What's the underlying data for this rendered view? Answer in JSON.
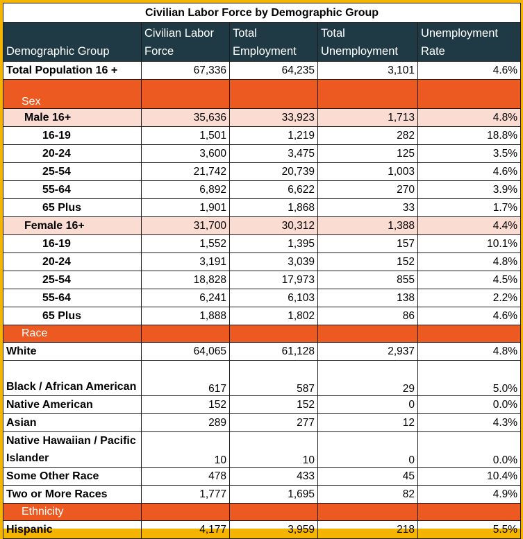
{
  "title": "Civilian Labor Force by Demographic Group",
  "headers": [
    "Demographic Group",
    "Civilian Labor Force",
    "Total Employment",
    "Total Unemployment",
    "Unemployment Rate"
  ],
  "colors": {
    "frame": "#f5b400",
    "header_bg": "#1f3a44",
    "section_bg": "#ec5a21",
    "subgroup_bg": "#fbdcd2"
  },
  "rows": [
    {
      "type": "data",
      "level": 0,
      "label": "Total Population 16 +",
      "clf": "67,336",
      "emp": "64,235",
      "unemp": "3,101",
      "rate": "4.6%"
    },
    {
      "type": "section",
      "label": "Sex"
    },
    {
      "type": "data",
      "level": 1,
      "sub": true,
      "label": "Male 16+",
      "clf": "35,636",
      "emp": "33,923",
      "unemp": "1,713",
      "rate": "4.8%"
    },
    {
      "type": "data",
      "level": 2,
      "label": "16-19",
      "clf": "1,501",
      "emp": "1,219",
      "unemp": "282",
      "rate": "18.8%"
    },
    {
      "type": "data",
      "level": 2,
      "label": "20-24",
      "clf": "3,600",
      "emp": "3,475",
      "unemp": "125",
      "rate": "3.5%"
    },
    {
      "type": "data",
      "level": 2,
      "label": "25-54",
      "clf": "21,742",
      "emp": "20,739",
      "unemp": "1,003",
      "rate": "4.6%"
    },
    {
      "type": "data",
      "level": 2,
      "label": "55-64",
      "clf": "6,892",
      "emp": "6,622",
      "unemp": "270",
      "rate": "3.9%"
    },
    {
      "type": "data",
      "level": 2,
      "label": "65 Plus",
      "clf": "1,901",
      "emp": "1,868",
      "unemp": "33",
      "rate": "1.7%"
    },
    {
      "type": "data",
      "level": 1,
      "sub": true,
      "label": "Female 16+",
      "clf": "31,700",
      "emp": "30,312",
      "unemp": "1,388",
      "rate": "4.4%"
    },
    {
      "type": "data",
      "level": 2,
      "label": "16-19",
      "clf": "1,552",
      "emp": "1,395",
      "unemp": "157",
      "rate": "10.1%"
    },
    {
      "type": "data",
      "level": 2,
      "label": "20-24",
      "clf": "3,191",
      "emp": "3,039",
      "unemp": "152",
      "rate": "4.8%"
    },
    {
      "type": "data",
      "level": 2,
      "label": "25-54",
      "clf": "18,828",
      "emp": "17,973",
      "unemp": "855",
      "rate": "4.5%"
    },
    {
      "type": "data",
      "level": 2,
      "label": "55-64",
      "clf": "6,241",
      "emp": "6,103",
      "unemp": "138",
      "rate": "2.2%"
    },
    {
      "type": "data",
      "level": 2,
      "label": "65 Plus",
      "clf": "1,888",
      "emp": "1,802",
      "unemp": "86",
      "rate": "4.6%"
    },
    {
      "type": "section",
      "label": "Race"
    },
    {
      "type": "data",
      "level": 0,
      "label": "White",
      "clf": "64,065",
      "emp": "61,128",
      "unemp": "2,937",
      "rate": "4.8%"
    },
    {
      "type": "data",
      "level": 0,
      "tall": true,
      "label": "Black / African American",
      "clf": "617",
      "emp": "587",
      "unemp": "29",
      "rate": "5.0%"
    },
    {
      "type": "data",
      "level": 0,
      "label": "Native American",
      "clf": "152",
      "emp": "152",
      "unemp": "0",
      "rate": "0.0%"
    },
    {
      "type": "data",
      "level": 0,
      "label": "Asian",
      "clf": "289",
      "emp": "277",
      "unemp": "12",
      "rate": "4.3%"
    },
    {
      "type": "data",
      "level": 0,
      "tall": true,
      "label": "Native Hawaiian / Pacific Islander",
      "clf": "10",
      "emp": "10",
      "unemp": "0",
      "rate": "0.0%"
    },
    {
      "type": "data",
      "level": 0,
      "label": "Some Other Race",
      "clf": "478",
      "emp": "433",
      "unemp": "45",
      "rate": "10.4%"
    },
    {
      "type": "data",
      "level": 0,
      "label": "Two or More Races",
      "clf": "1,777",
      "emp": "1,695",
      "unemp": "82",
      "rate": "4.9%"
    },
    {
      "type": "section",
      "label": "Ethnicity"
    },
    {
      "type": "data",
      "level": 0,
      "label": "Hispanic",
      "clf": "4,177",
      "emp": "3,959",
      "unemp": "218",
      "rate": "5.5%"
    }
  ]
}
